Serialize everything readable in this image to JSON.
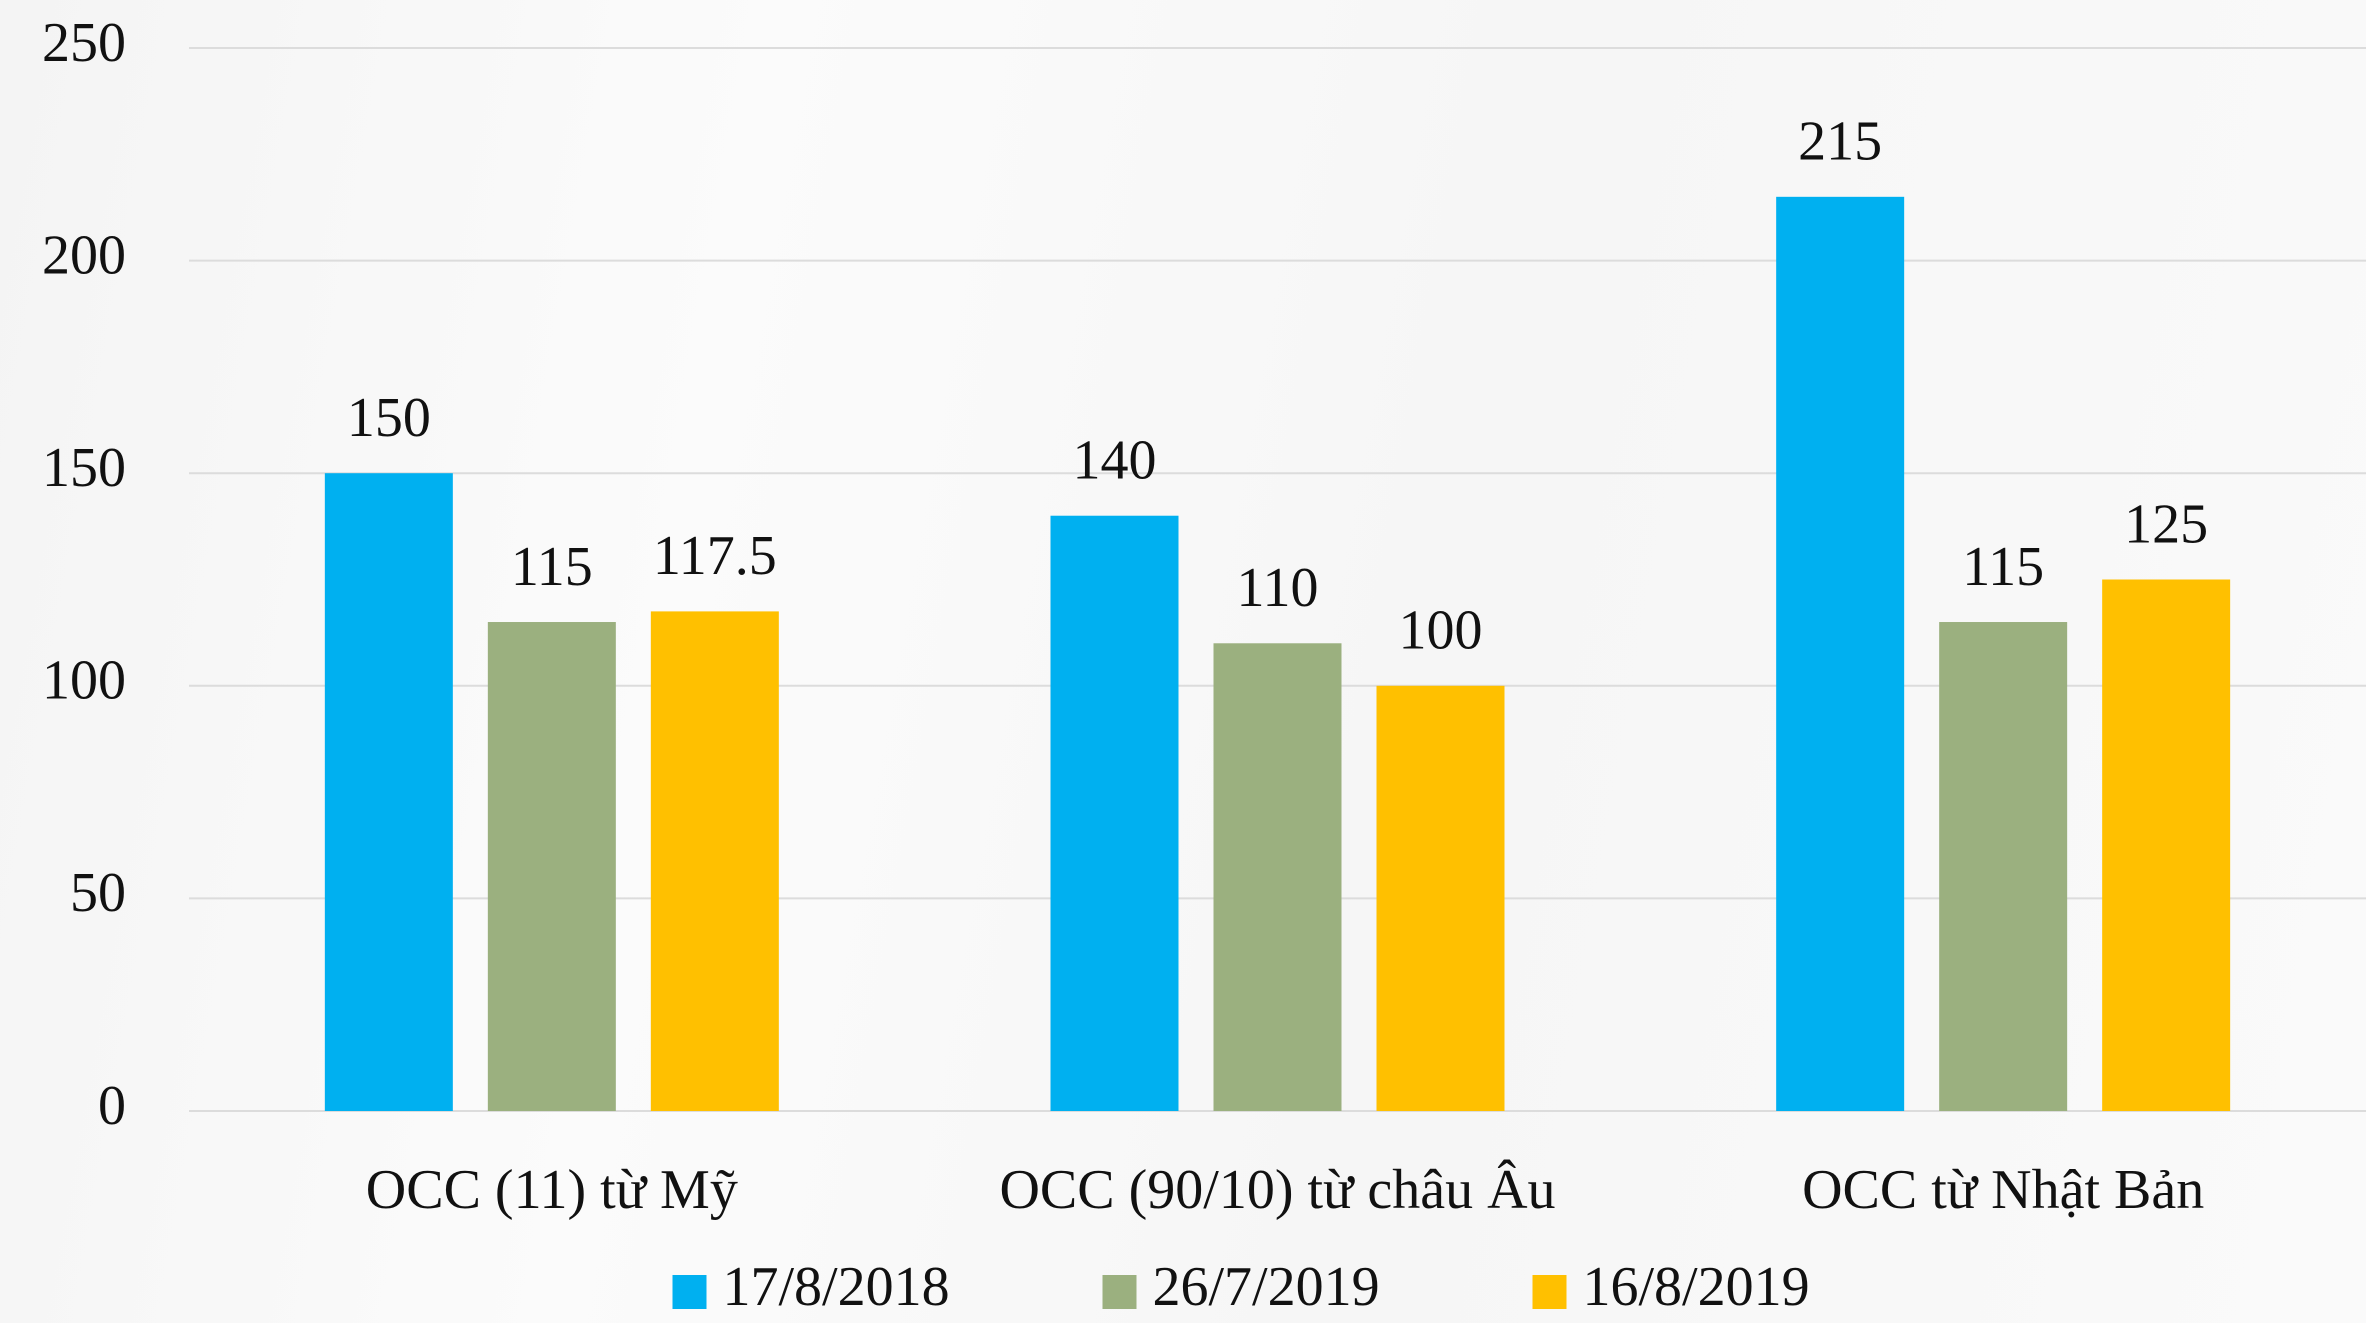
{
  "chart_data": {
    "type": "bar",
    "categories": [
      "OCC (11) từ Mỹ",
      "OCC (90/10) từ châu Âu",
      "OCC từ Nhật Bản"
    ],
    "series": [
      {
        "name": "17/8/2018",
        "color": "#00b0f0",
        "values": [
          150,
          140,
          215
        ]
      },
      {
        "name": "26/7/2019",
        "color": "#9bb07f",
        "values": [
          115,
          110,
          115
        ]
      },
      {
        "name": "16/8/2019",
        "color": "#ffc000",
        "values": [
          117.5,
          100,
          125
        ]
      }
    ],
    "ylim": [
      0,
      250
    ],
    "yticks": [
      0,
      50,
      100,
      150,
      200,
      250
    ],
    "grid": true,
    "legend": "bottom"
  }
}
